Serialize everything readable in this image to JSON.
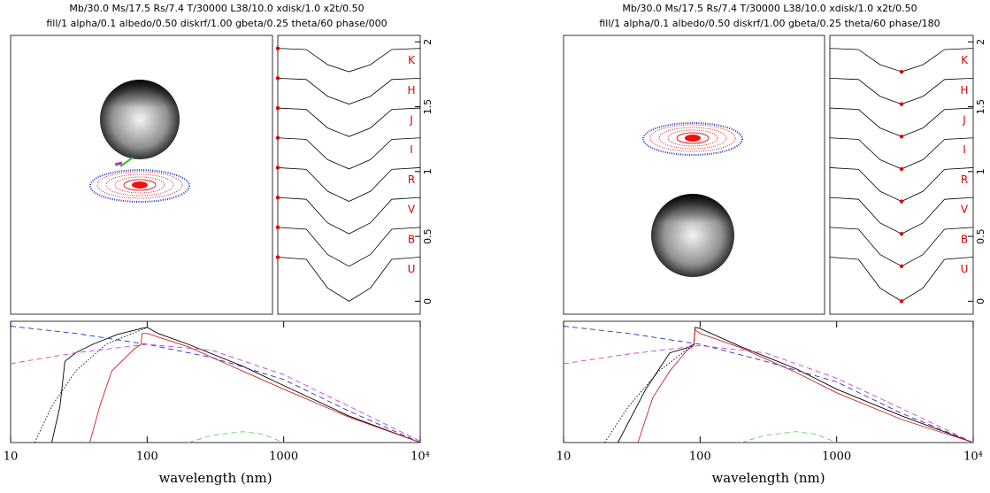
{
  "chart_data": [
    {
      "type": "lightcurve",
      "title": "Mb/30.0 Ms/17.5 Rs/7.4 T/30000 L38/10.0 xdisk/1.0 x2t/0.50",
      "subtitle": "fill/1 alpha/0.1 albedo/0.50 diskrf/1.00 gbeta/0.25 theta/60 phase/000",
      "x": [
        0,
        0.2,
        0.35,
        0.5,
        0.65,
        0.8,
        1
      ],
      "xlim": [
        0,
        1
      ],
      "ylim": [
        -0.1,
        2.05
      ],
      "yticks": [
        0,
        0.5,
        1,
        1.5,
        2
      ],
      "name_color": "#e00000",
      "current_phase": 0,
      "marker_color": "#e00000",
      "series": [
        {
          "name": "K",
          "color": "#000000",
          "values": [
            1.95,
            1.941,
            1.824,
            1.77,
            1.824,
            1.941,
            1.95
          ]
        },
        {
          "name": "H",
          "color": "#000000",
          "values": [
            1.72,
            1.71,
            1.58,
            1.52,
            1.58,
            1.71,
            1.72
          ]
        },
        {
          "name": "J",
          "color": "#000000",
          "values": [
            1.49,
            1.479,
            1.336,
            1.27,
            1.336,
            1.479,
            1.49
          ]
        },
        {
          "name": "I",
          "color": "#000000",
          "values": [
            1.26,
            1.248,
            1.092,
            1.02,
            1.092,
            1.248,
            1.26
          ]
        },
        {
          "name": "R",
          "color": "#000000",
          "values": [
            1.03,
            1.017,
            0.848,
            0.77,
            0.848,
            1.017,
            1.03
          ]
        },
        {
          "name": "V",
          "color": "#000000",
          "values": [
            0.8,
            0.786,
            0.604,
            0.52,
            0.604,
            0.786,
            0.8
          ]
        },
        {
          "name": "B",
          "color": "#000000",
          "values": [
            0.57,
            0.555,
            0.36,
            0.27,
            0.36,
            0.555,
            0.57
          ]
        },
        {
          "name": "U",
          "color": "#000000",
          "values": [
            0.34,
            0.323,
            0.102,
            0,
            0.102,
            0.323,
            0.34
          ]
        }
      ]
    },
    {
      "type": "line",
      "xlabel": "wavelength (nm)",
      "log_x": true,
      "xlim": [
        10,
        10000
      ],
      "xticks": [
        10,
        100,
        1000,
        {
          "value": 10000,
          "label": "10⁴"
        }
      ],
      "ylim": [
        0,
        10
      ],
      "series": [
        {
          "color": "#000000",
          "dash": "solid",
          "x": [
            20,
            23,
            25,
            30,
            40,
            60,
            90,
            100,
            120,
            200,
            500,
            1000,
            3000,
            10000
          ],
          "values": [
            0,
            3,
            6.7,
            7.4,
            8.1,
            8.9,
            9.4,
            9.5,
            9.0,
            8.1,
            6.3,
            4.7,
            2.2,
            0
          ]
        },
        {
          "color": "#d02020",
          "dash": "solid",
          "x": [
            38,
            45,
            55,
            80,
            90,
            92,
            100,
            200,
            500,
            1000,
            3000,
            10000
          ],
          "values": [
            0,
            3,
            5.9,
            7.7,
            8.1,
            9.0,
            9.0,
            7.9,
            5.9,
            4.4,
            2.1,
            0
          ]
        },
        {
          "color": "#3030c0",
          "dash": "dashed",
          "x": [
            10,
            30,
            100,
            300,
            1000,
            3000,
            10000
          ],
          "values": [
            9.6,
            9.0,
            8.1,
            7.0,
            5.2,
            2.6,
            0
          ]
        },
        {
          "color": "#d040d0",
          "dash": "dashed",
          "x": [
            10,
            30,
            100,
            300,
            1000,
            3000,
            10000
          ],
          "values": [
            6.5,
            7.4,
            8.1,
            7.6,
            5.6,
            3.0,
            0.1
          ]
        },
        {
          "color": "#60d060",
          "dash": "dashed",
          "x": [
            200,
            300,
            500,
            700,
            1000
          ],
          "values": [
            0,
            0.6,
            0.9,
            0.7,
            0
          ]
        },
        {
          "color": "#000000",
          "dash": "dotted",
          "x": [
            15,
            20,
            30,
            50,
            100
          ],
          "values": [
            0,
            3,
            5.9,
            8.1,
            9.5
          ]
        }
      ]
    },
    {
      "type": "lightcurve",
      "title": "Mb/30.0 Ms/17.5 Rs/7.4 T/30000 L38/10.0 xdisk/1.0 x2t/0.50",
      "subtitle": "fill/1 alpha/0.1 albedo/0.50 diskrf/1.00 gbeta/0.25 theta/60 phase/180",
      "x": [
        0,
        0.2,
        0.35,
        0.5,
        0.65,
        0.8,
        1
      ],
      "xlim": [
        0,
        1
      ],
      "ylim": [
        -0.1,
        2.05
      ],
      "yticks": [
        0,
        0.5,
        1,
        1.5,
        2
      ],
      "name_color": "#e00000",
      "current_phase": 0.5,
      "marker_color": "#e00000",
      "series": [
        {
          "name": "K",
          "color": "#000000",
          "values": [
            1.95,
            1.941,
            1.824,
            1.77,
            1.824,
            1.941,
            1.95
          ]
        },
        {
          "name": "H",
          "color": "#000000",
          "values": [
            1.72,
            1.71,
            1.58,
            1.52,
            1.58,
            1.71,
            1.72
          ]
        },
        {
          "name": "J",
          "color": "#000000",
          "values": [
            1.49,
            1.479,
            1.336,
            1.27,
            1.336,
            1.479,
            1.49
          ]
        },
        {
          "name": "I",
          "color": "#000000",
          "values": [
            1.26,
            1.248,
            1.092,
            1.02,
            1.092,
            1.248,
            1.26
          ]
        },
        {
          "name": "R",
          "color": "#000000",
          "values": [
            1.03,
            1.017,
            0.848,
            0.77,
            0.848,
            1.017,
            1.03
          ]
        },
        {
          "name": "V",
          "color": "#000000",
          "values": [
            0.8,
            0.786,
            0.604,
            0.52,
            0.604,
            0.786,
            0.8
          ]
        },
        {
          "name": "B",
          "color": "#000000",
          "values": [
            0.57,
            0.555,
            0.36,
            0.27,
            0.36,
            0.555,
            0.57
          ]
        },
        {
          "name": "U",
          "color": "#000000",
          "values": [
            0.34,
            0.323,
            0.102,
            0,
            0.102,
            0.323,
            0.34
          ]
        }
      ]
    },
    {
      "type": "line",
      "xlabel": "wavelength (nm)",
      "log_x": true,
      "xlim": [
        10,
        10000
      ],
      "xticks": [
        10,
        100,
        1000,
        {
          "value": 10000,
          "label": "10⁴"
        }
      ],
      "ylim": [
        0,
        10
      ],
      "series": [
        {
          "color": "#000000",
          "dash": "solid",
          "x": [
            25,
            40,
            60,
            80,
            90,
            92,
            100,
            200,
            500,
            1000,
            3000,
            10000
          ],
          "values": [
            0,
            4.4,
            7.4,
            7.8,
            8.1,
            9.5,
            9.4,
            7.9,
            6.1,
            4.4,
            2.2,
            0
          ]
        },
        {
          "color": "#d02020",
          "dash": "solid",
          "x": [
            35,
            45,
            60,
            80,
            90,
            92,
            100,
            200,
            500,
            1000,
            3000,
            10000
          ],
          "values": [
            0,
            3.7,
            5.9,
            7.6,
            8.0,
            9.3,
            9.0,
            7.8,
            5.8,
            4.1,
            1.9,
            0
          ]
        },
        {
          "color": "#3030c0",
          "dash": "dashed",
          "x": [
            10,
            30,
            100,
            300,
            1000,
            3000,
            10000
          ],
          "values": [
            9.6,
            9.0,
            8.1,
            6.7,
            5.0,
            2.4,
            0
          ]
        },
        {
          "color": "#d040d0",
          "dash": "dashed",
          "x": [
            10,
            30,
            100,
            300,
            1000,
            3000,
            10000
          ],
          "values": [
            6.5,
            7.3,
            8.0,
            7.4,
            5.3,
            2.8,
            0
          ]
        },
        {
          "color": "#60d060",
          "dash": "dashed",
          "x": [
            200,
            300,
            500,
            700,
            1000
          ],
          "values": [
            0,
            0.6,
            0.9,
            0.7,
            0
          ]
        },
        {
          "color": "#000000",
          "dash": "dotted",
          "x": [
            20,
            30,
            50,
            90
          ],
          "values": [
            0,
            3,
            5.9,
            8.1
          ]
        }
      ]
    }
  ]
}
